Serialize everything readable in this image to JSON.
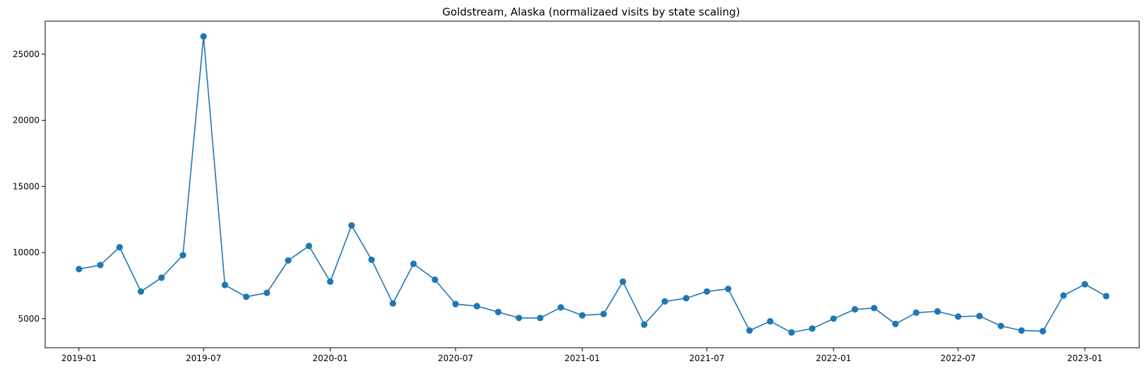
{
  "chart_data": {
    "type": "line",
    "title": "Goldstream, Alaska (normalizaed visits by state scaling)",
    "xlabel": "",
    "ylabel": "",
    "x_ticks": [
      "2019-01",
      "2019-07",
      "2020-01",
      "2020-07",
      "2021-01",
      "2021-07",
      "2022-01",
      "2022-07",
      "2023-01"
    ],
    "y_ticks": [
      5000,
      10000,
      15000,
      20000,
      25000
    ],
    "xlim": [
      "2018-11-13",
      "2023-03-21"
    ],
    "ylim": [
      2800,
      27500
    ],
    "grid": false,
    "color": "#1f77b4",
    "marker": "circle",
    "x": [
      "2019-01-01",
      "2019-02-01",
      "2019-03-01",
      "2019-04-01",
      "2019-05-01",
      "2019-06-01",
      "2019-07-01",
      "2019-08-01",
      "2019-09-01",
      "2019-10-01",
      "2019-11-01",
      "2019-12-01",
      "2020-01-01",
      "2020-02-01",
      "2020-03-01",
      "2020-04-01",
      "2020-05-01",
      "2020-06-01",
      "2020-07-01",
      "2020-08-01",
      "2020-09-01",
      "2020-10-01",
      "2020-11-01",
      "2020-12-01",
      "2021-01-01",
      "2021-02-01",
      "2021-03-01",
      "2021-04-01",
      "2021-05-01",
      "2021-06-01",
      "2021-07-01",
      "2021-08-01",
      "2021-09-01",
      "2021-10-01",
      "2021-11-01",
      "2021-12-01",
      "2022-01-01",
      "2022-02-01",
      "2022-03-01",
      "2022-04-01",
      "2022-05-01",
      "2022-06-01",
      "2022-07-01",
      "2022-08-01",
      "2022-09-01",
      "2022-10-01",
      "2022-11-01",
      "2022-12-01",
      "2023-01-01",
      "2023-02-01"
    ],
    "values": [
      8750,
      9050,
      10400,
      7050,
      8100,
      9800,
      26350,
      7550,
      6650,
      6950,
      9400,
      10500,
      7800,
      12050,
      9450,
      6150,
      9150,
      7950,
      6100,
      5950,
      5500,
      5050,
      5050,
      5850,
      5250,
      5350,
      7800,
      4550,
      6300,
      6550,
      7050,
      7250,
      4100,
      4800,
      3950,
      4250,
      5000,
      5700,
      5800,
      4600,
      5450,
      5550,
      5150,
      5200,
      4450,
      4100,
      4050,
      6750,
      7600,
      6700
    ]
  }
}
